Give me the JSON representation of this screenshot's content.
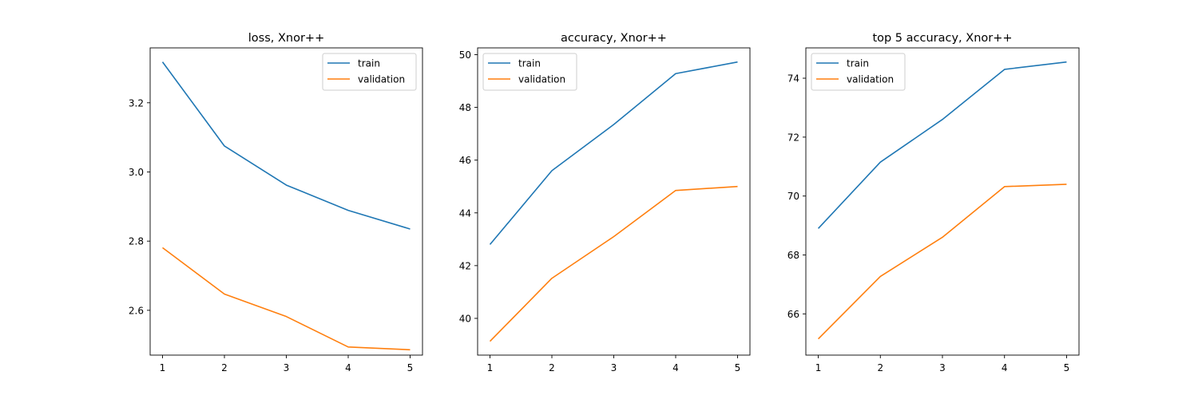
{
  "chart_data": [
    {
      "type": "line",
      "title": "loss, Xnor++",
      "xlabel": "",
      "ylabel": "",
      "x": [
        1,
        2,
        3,
        4,
        5
      ],
      "xticks": [
        1,
        2,
        3,
        4,
        5
      ],
      "yticks": [
        2.6,
        2.8,
        3.0,
        3.2
      ],
      "ytick_labels": [
        "2.6",
        "2.8",
        "3.0",
        "3.2"
      ],
      "xlim": [
        0.8,
        5.2
      ],
      "ylim": [
        2.4705,
        3.3587
      ],
      "grid": false,
      "legend": "upper-right",
      "series": [
        {
          "name": "train",
          "color": "#1f77b4",
          "values": [
            3.318,
            3.075,
            2.962,
            2.889,
            2.835
          ]
        },
        {
          "name": "validation",
          "color": "#ff7f0e",
          "values": [
            2.781,
            2.647,
            2.582,
            2.494,
            2.486
          ]
        }
      ]
    },
    {
      "type": "line",
      "title": "accuracy, Xnor++",
      "xlabel": "",
      "ylabel": "",
      "x": [
        1,
        2,
        3,
        4,
        5
      ],
      "xticks": [
        1,
        2,
        3,
        4,
        5
      ],
      "yticks": [
        40,
        42,
        44,
        46,
        48,
        50
      ],
      "ytick_labels": [
        "40",
        "42",
        "44",
        "46",
        "48",
        "50"
      ],
      "xlim": [
        0.8,
        5.2
      ],
      "ylim": [
        38.607,
        50.256
      ],
      "grid": false,
      "legend": "upper-left",
      "series": [
        {
          "name": "train",
          "color": "#1f77b4",
          "values": [
            42.8,
            45.6,
            47.35,
            49.28,
            49.72
          ]
        },
        {
          "name": "validation",
          "color": "#ff7f0e",
          "values": [
            39.13,
            41.52,
            43.1,
            44.85,
            45.0
          ]
        }
      ]
    },
    {
      "type": "line",
      "title": "top 5 accuracy, Xnor++",
      "xlabel": "",
      "ylabel": "",
      "x": [
        1,
        2,
        3,
        4,
        5
      ],
      "xticks": [
        1,
        2,
        3,
        4,
        5
      ],
      "yticks": [
        66,
        68,
        70,
        72,
        74
      ],
      "ytick_labels": [
        "66",
        "68",
        "70",
        "72",
        "74"
      ],
      "xlim": [
        0.8,
        5.2
      ],
      "ylim": [
        64.6,
        75.03
      ],
      "grid": false,
      "legend": "upper-left",
      "series": [
        {
          "name": "train",
          "color": "#1f77b4",
          "values": [
            68.9,
            71.15,
            72.6,
            74.3,
            74.55
          ]
        },
        {
          "name": "validation",
          "color": "#ff7f0e",
          "values": [
            65.15,
            67.27,
            68.6,
            70.32,
            70.4
          ]
        }
      ]
    }
  ]
}
